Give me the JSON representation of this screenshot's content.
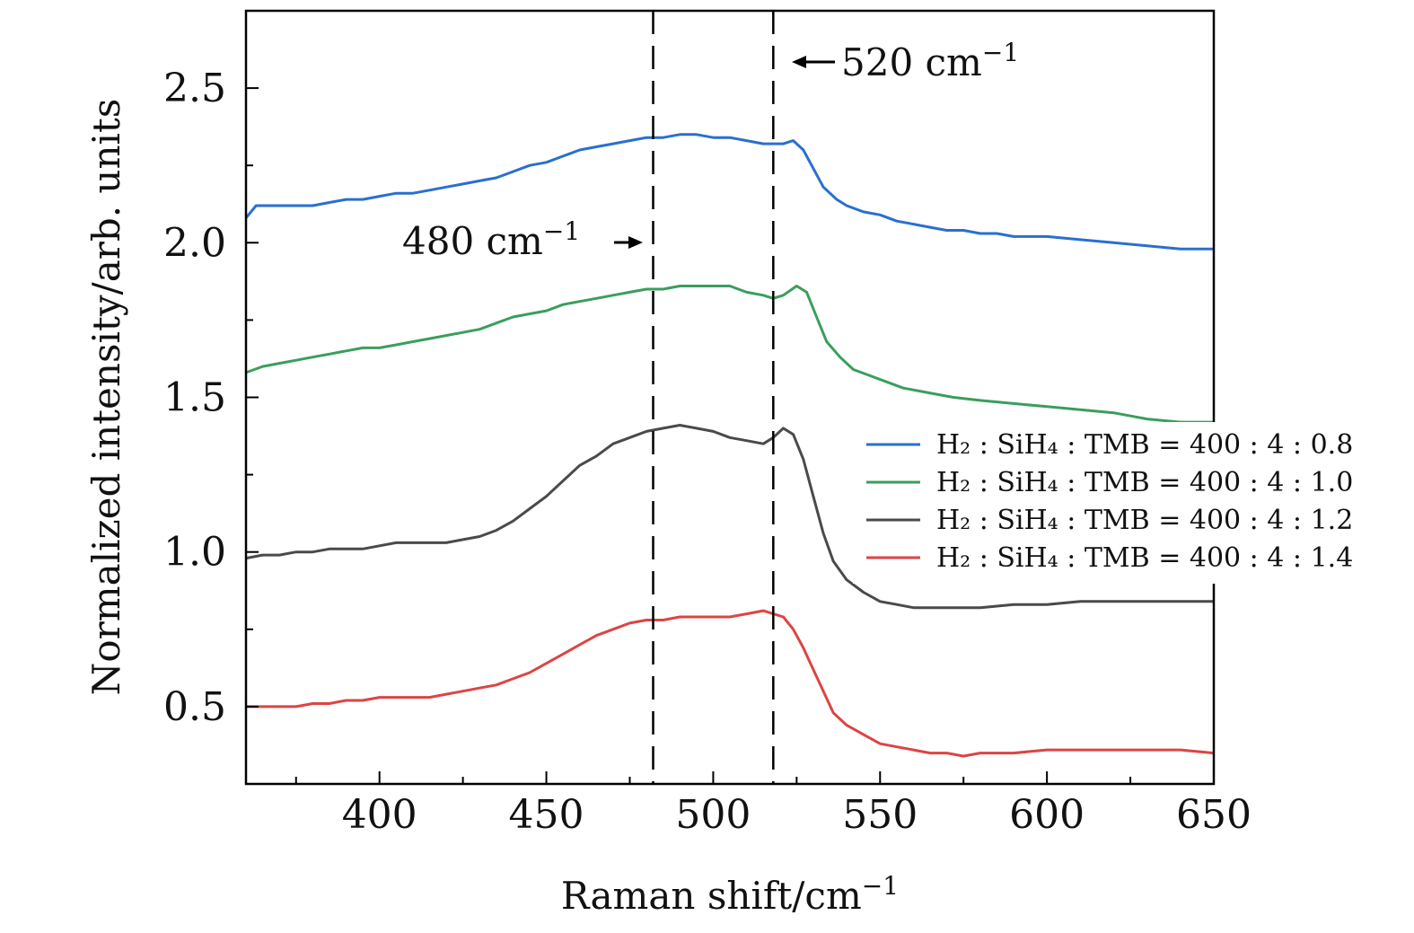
{
  "chart_data": {
    "type": "line",
    "xlabel": "Raman shift/cm",
    "xlabel_sup": "−1",
    "ylabel": "Normalized intensity/arb. units",
    "xlim": [
      360,
      650
    ],
    "ylim": [
      0.25,
      2.75
    ],
    "x_ticks": [
      "400",
      "450",
      "500",
      "550",
      "600",
      "650"
    ],
    "y_ticks": [
      "0.5",
      "1.0",
      "1.5",
      "2.0",
      "2.5"
    ],
    "grid": false,
    "legend_position": "right",
    "annotations": [
      {
        "name": "annotation-480",
        "x": 482,
        "text": "480 cm",
        "sup": "−1"
      },
      {
        "name": "annotation-520",
        "x": 518,
        "text": "520 cm",
        "sup": "−1"
      }
    ],
    "series": [
      {
        "name": "H₂ : SiH₄ : TMB = 400 : 4 : 0.8",
        "color": "#2a6fd0",
        "points": [
          [
            360,
            2.08
          ],
          [
            363,
            2.12
          ],
          [
            370,
            2.12
          ],
          [
            375,
            2.12
          ],
          [
            380,
            2.12
          ],
          [
            385,
            2.13
          ],
          [
            390,
            2.14
          ],
          [
            395,
            2.14
          ],
          [
            400,
            2.15
          ],
          [
            405,
            2.16
          ],
          [
            410,
            2.16
          ],
          [
            415,
            2.17
          ],
          [
            420,
            2.18
          ],
          [
            425,
            2.19
          ],
          [
            430,
            2.2
          ],
          [
            435,
            2.21
          ],
          [
            440,
            2.23
          ],
          [
            445,
            2.25
          ],
          [
            450,
            2.26
          ],
          [
            455,
            2.28
          ],
          [
            460,
            2.3
          ],
          [
            465,
            2.31
          ],
          [
            470,
            2.32
          ],
          [
            475,
            2.33
          ],
          [
            480,
            2.34
          ],
          [
            485,
            2.34
          ],
          [
            490,
            2.35
          ],
          [
            495,
            2.35
          ],
          [
            500,
            2.34
          ],
          [
            505,
            2.34
          ],
          [
            510,
            2.33
          ],
          [
            515,
            2.32
          ],
          [
            518,
            2.32
          ],
          [
            521,
            2.32
          ],
          [
            524,
            2.33
          ],
          [
            527,
            2.3
          ],
          [
            530,
            2.24
          ],
          [
            533,
            2.18
          ],
          [
            537,
            2.14
          ],
          [
            540,
            2.12
          ],
          [
            545,
            2.1
          ],
          [
            550,
            2.09
          ],
          [
            555,
            2.07
          ],
          [
            560,
            2.06
          ],
          [
            565,
            2.05
          ],
          [
            570,
            2.04
          ],
          [
            575,
            2.04
          ],
          [
            580,
            2.03
          ],
          [
            585,
            2.03
          ],
          [
            590,
            2.02
          ],
          [
            600,
            2.02
          ],
          [
            610,
            2.01
          ],
          [
            620,
            2.0
          ],
          [
            630,
            1.99
          ],
          [
            640,
            1.98
          ],
          [
            650,
            1.98
          ]
        ]
      },
      {
        "name": "H₂ : SiH₄ : TMB = 400 : 4 : 1.0",
        "color": "#3a9e5c",
        "points": [
          [
            360,
            1.58
          ],
          [
            365,
            1.6
          ],
          [
            370,
            1.61
          ],
          [
            375,
            1.62
          ],
          [
            380,
            1.63
          ],
          [
            385,
            1.64
          ],
          [
            390,
            1.65
          ],
          [
            395,
            1.66
          ],
          [
            400,
            1.66
          ],
          [
            405,
            1.67
          ],
          [
            410,
            1.68
          ],
          [
            415,
            1.69
          ],
          [
            420,
            1.7
          ],
          [
            425,
            1.71
          ],
          [
            430,
            1.72
          ],
          [
            435,
            1.74
          ],
          [
            440,
            1.76
          ],
          [
            445,
            1.77
          ],
          [
            450,
            1.78
          ],
          [
            455,
            1.8
          ],
          [
            460,
            1.81
          ],
          [
            465,
            1.82
          ],
          [
            470,
            1.83
          ],
          [
            475,
            1.84
          ],
          [
            480,
            1.85
          ],
          [
            485,
            1.85
          ],
          [
            490,
            1.86
          ],
          [
            495,
            1.86
          ],
          [
            500,
            1.86
          ],
          [
            505,
            1.86
          ],
          [
            510,
            1.84
          ],
          [
            515,
            1.83
          ],
          [
            518,
            1.82
          ],
          [
            521,
            1.83
          ],
          [
            525,
            1.86
          ],
          [
            528,
            1.84
          ],
          [
            531,
            1.76
          ],
          [
            534,
            1.68
          ],
          [
            538,
            1.63
          ],
          [
            542,
            1.59
          ],
          [
            547,
            1.57
          ],
          [
            552,
            1.55
          ],
          [
            557,
            1.53
          ],
          [
            562,
            1.52
          ],
          [
            567,
            1.51
          ],
          [
            572,
            1.5
          ],
          [
            580,
            1.49
          ],
          [
            590,
            1.48
          ],
          [
            600,
            1.47
          ],
          [
            610,
            1.46
          ],
          [
            620,
            1.45
          ],
          [
            630,
            1.43
          ],
          [
            640,
            1.42
          ],
          [
            650,
            1.42
          ]
        ]
      },
      {
        "name": "H₂ : SiH₄ : TMB = 400 : 4 : 1.2",
        "color": "#4a4a4a",
        "points": [
          [
            360,
            0.98
          ],
          [
            365,
            0.99
          ],
          [
            370,
            0.99
          ],
          [
            375,
            1.0
          ],
          [
            380,
            1.0
          ],
          [
            385,
            1.01
          ],
          [
            390,
            1.01
          ],
          [
            395,
            1.01
          ],
          [
            400,
            1.02
          ],
          [
            405,
            1.03
          ],
          [
            410,
            1.03
          ],
          [
            415,
            1.03
          ],
          [
            420,
            1.03
          ],
          [
            425,
            1.04
          ],
          [
            430,
            1.05
          ],
          [
            435,
            1.07
          ],
          [
            440,
            1.1
          ],
          [
            445,
            1.14
          ],
          [
            450,
            1.18
          ],
          [
            455,
            1.23
          ],
          [
            460,
            1.28
          ],
          [
            465,
            1.31
          ],
          [
            470,
            1.35
          ],
          [
            475,
            1.37
          ],
          [
            480,
            1.39
          ],
          [
            485,
            1.4
          ],
          [
            490,
            1.41
          ],
          [
            495,
            1.4
          ],
          [
            500,
            1.39
          ],
          [
            505,
            1.37
          ],
          [
            510,
            1.36
          ],
          [
            515,
            1.35
          ],
          [
            518,
            1.37
          ],
          [
            521,
            1.4
          ],
          [
            524,
            1.38
          ],
          [
            527,
            1.3
          ],
          [
            530,
            1.18
          ],
          [
            533,
            1.06
          ],
          [
            536,
            0.97
          ],
          [
            540,
            0.91
          ],
          [
            545,
            0.87
          ],
          [
            550,
            0.84
          ],
          [
            555,
            0.83
          ],
          [
            560,
            0.82
          ],
          [
            565,
            0.82
          ],
          [
            570,
            0.82
          ],
          [
            575,
            0.82
          ],
          [
            580,
            0.82
          ],
          [
            590,
            0.83
          ],
          [
            600,
            0.83
          ],
          [
            610,
            0.84
          ],
          [
            620,
            0.84
          ],
          [
            630,
            0.84
          ],
          [
            640,
            0.84
          ],
          [
            650,
            0.84
          ]
        ]
      },
      {
        "name": "H₂ : SiH₄ : TMB = 400 : 4 : 1.4",
        "color": "#dd4444",
        "points": [
          [
            360,
            0.5
          ],
          [
            365,
            0.5
          ],
          [
            370,
            0.5
          ],
          [
            375,
            0.5
          ],
          [
            380,
            0.51
          ],
          [
            385,
            0.51
          ],
          [
            390,
            0.52
          ],
          [
            395,
            0.52
          ],
          [
            400,
            0.53
          ],
          [
            405,
            0.53
          ],
          [
            410,
            0.53
          ],
          [
            415,
            0.53
          ],
          [
            420,
            0.54
          ],
          [
            425,
            0.55
          ],
          [
            430,
            0.56
          ],
          [
            435,
            0.57
          ],
          [
            440,
            0.59
          ],
          [
            445,
            0.61
          ],
          [
            450,
            0.64
          ],
          [
            455,
            0.67
          ],
          [
            460,
            0.7
          ],
          [
            465,
            0.73
          ],
          [
            470,
            0.75
          ],
          [
            475,
            0.77
          ],
          [
            480,
            0.78
          ],
          [
            485,
            0.78
          ],
          [
            490,
            0.79
          ],
          [
            495,
            0.79
          ],
          [
            500,
            0.79
          ],
          [
            505,
            0.79
          ],
          [
            510,
            0.8
          ],
          [
            515,
            0.81
          ],
          [
            518,
            0.8
          ],
          [
            521,
            0.79
          ],
          [
            524,
            0.75
          ],
          [
            527,
            0.69
          ],
          [
            530,
            0.62
          ],
          [
            533,
            0.55
          ],
          [
            536,
            0.48
          ],
          [
            540,
            0.44
          ],
          [
            545,
            0.41
          ],
          [
            550,
            0.38
          ],
          [
            555,
            0.37
          ],
          [
            560,
            0.36
          ],
          [
            565,
            0.35
          ],
          [
            570,
            0.35
          ],
          [
            575,
            0.34
          ],
          [
            580,
            0.35
          ],
          [
            590,
            0.35
          ],
          [
            600,
            0.36
          ],
          [
            610,
            0.36
          ],
          [
            620,
            0.36
          ],
          [
            630,
            0.36
          ],
          [
            640,
            0.36
          ],
          [
            650,
            0.35
          ]
        ]
      }
    ]
  }
}
